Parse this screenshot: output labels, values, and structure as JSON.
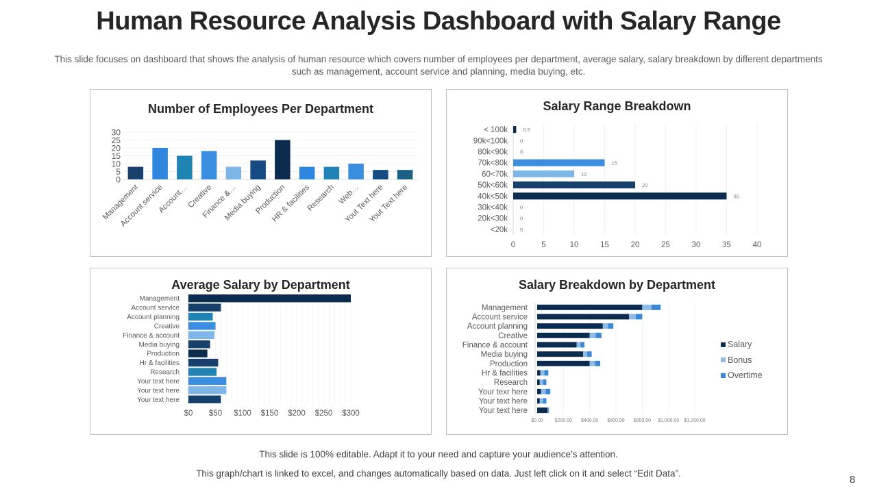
{
  "slide": {
    "title": "Human Resource Analysis Dashboard with Salary Range",
    "subtitle": "This slide focuses on dashboard that shows the analysis of human resource which covers number of employees per department, average salary, salary breakdown by different departments such as management, account service and planning, media buying, etc.",
    "footer_line1": "This slide is 100% editable. Adapt it to your need and capture your audience’s attention.",
    "footer_line2": "This graph/chart is linked to excel, and changes automatically based on data. Just left click on it and select “Edit Data”.",
    "page_number": "8"
  },
  "chart_data": [
    {
      "id": "employees",
      "type": "bar",
      "title": "Number of Employees Per Department",
      "xlabel": "",
      "ylabel": "",
      "categories": [
        "Management",
        "Account service",
        "Account…",
        "Creative",
        "Finance &…",
        "Media buying",
        "Production",
        "HR & facilities",
        "Research",
        "Web…",
        "Yout Text here",
        "Yout Text here"
      ],
      "values": [
        8,
        20,
        15,
        18,
        8,
        12,
        25,
        8,
        8,
        10,
        6,
        6
      ],
      "colors": [
        "#17406d",
        "#2e86de",
        "#1f83b4",
        "#3a8ddf",
        "#7fb6e8",
        "#164a82",
        "#0c2c4f",
        "#2e86de",
        "#1f83b4",
        "#3a8ddf",
        "#164a82",
        "#1a6185"
      ],
      "ylim": [
        0,
        30
      ],
      "yticks": [
        0,
        5,
        10,
        15,
        20,
        25,
        30
      ],
      "grid": true,
      "legend": "none"
    },
    {
      "id": "salary-range",
      "type": "bar",
      "orientation": "horizontal",
      "title": "Salary Range Breakdown",
      "categories": [
        "< 100k",
        "90k<100k",
        "80k<90k",
        "70k<80k",
        "60<70k",
        "50k<60k",
        "40k<50k",
        "30k<40k",
        "20k<30k",
        "<20k"
      ],
      "values": [
        0.5,
        0,
        0,
        15,
        10,
        20,
        35,
        0,
        0,
        0
      ],
      "data_labels": [
        "0.5",
        "0",
        "0",
        "15",
        "10",
        "20",
        "35",
        "0",
        "0",
        "0"
      ],
      "colors": [
        "#0c2c4f",
        "#0c2c4f",
        "#0c2c4f",
        "#3a8ddf",
        "#7fb6e8",
        "#17406d",
        "#0c2c4f",
        "#0c2c4f",
        "#0c2c4f",
        "#0c2c4f"
      ],
      "xlim": [
        0,
        40
      ],
      "xticks": [
        0,
        5,
        10,
        15,
        20,
        25,
        30,
        35,
        40
      ],
      "grid": true,
      "legend": "none"
    },
    {
      "id": "avg-salary",
      "type": "bar",
      "orientation": "horizontal",
      "title": "Average Salary by Department",
      "categories": [
        "Management",
        "Account service",
        "Account planning",
        "Creative",
        "Finance & account",
        "Media buying",
        "Production",
        "Hr & facilities",
        "Research",
        "Your text here",
        "Your text here",
        "Your text here"
      ],
      "values": [
        300,
        60,
        45,
        50,
        48,
        40,
        35,
        55,
        52,
        70,
        70,
        60
      ],
      "colors": [
        "#0c2c4f",
        "#17406d",
        "#1f83b4",
        "#3a8ddf",
        "#7fb6e8",
        "#17406d",
        "#0c2c4f",
        "#17406d",
        "#1f83b4",
        "#3a8ddf",
        "#7fb6e8",
        "#17406d"
      ],
      "xlim": [
        0,
        300
      ],
      "xticks": [
        "$0",
        "$50",
        "$100",
        "$150",
        "$200",
        "$250",
        "$300"
      ],
      "xtick_values": [
        0,
        50,
        100,
        150,
        200,
        250,
        300
      ],
      "grid": true,
      "legend": "none"
    },
    {
      "id": "salary-breakdown",
      "type": "bar",
      "orientation": "horizontal",
      "stacked": true,
      "title": "Salary Breakdown by Department",
      "categories": [
        "Management",
        "Account service",
        "Account planning",
        "Creative",
        "Finance & account",
        "Media buying",
        "Production",
        "Hr & facilities",
        "Research",
        "Your texr here",
        "Your text here",
        "Your text here"
      ],
      "series": [
        {
          "name": "Salary",
          "color": "#0c2c4f",
          "values": [
            800,
            700,
            500,
            400,
            300,
            350,
            400,
            25,
            20,
            30,
            20,
            80
          ]
        },
        {
          "name": "Bonus",
          "color": "#8dbbe6",
          "values": [
            70,
            50,
            40,
            45,
            30,
            30,
            40,
            30,
            25,
            35,
            25,
            5
          ]
        },
        {
          "name": "Overtime",
          "color": "#3a87d6",
          "values": [
            70,
            50,
            40,
            45,
            30,
            35,
            40,
            30,
            25,
            35,
            25,
            5
          ]
        }
      ],
      "xlim": [
        0,
        1200
      ],
      "xticks": [
        "$0.00",
        "$200.00",
        "$400.00",
        "$600.00",
        "$800.00",
        "$1,000.00",
        "$1,200.00"
      ],
      "xtick_values": [
        0,
        200,
        400,
        600,
        800,
        1000,
        1200
      ],
      "grid": true,
      "legend": "right"
    }
  ]
}
